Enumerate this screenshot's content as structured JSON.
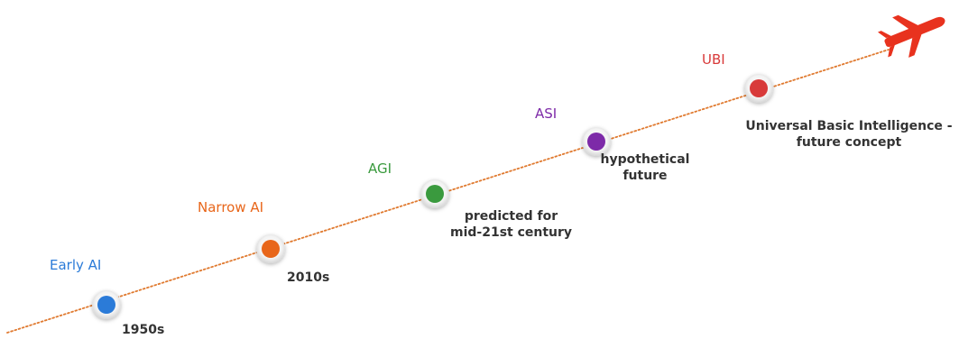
{
  "timeline": {
    "milestones": [
      {
        "label": "Early AI",
        "description": "1950s",
        "color": "#2b7bd8"
      },
      {
        "label": "Narrow AI",
        "description": "2010s",
        "color": "#e8661a"
      },
      {
        "label": "AGI",
        "description": "predicted for\nmid-21st century",
        "color": "#3a9a3e"
      },
      {
        "label": "ASI",
        "description": "hypothetical\nfuture",
        "color": "#7d2aa8"
      },
      {
        "label": "UBI",
        "description": "Universal Basic Intelligence -\nfuture concept",
        "color": "#d83a3a"
      }
    ],
    "line_color": "#e07a30",
    "end_icon": "airplane-icon",
    "end_icon_color": "#e8321e"
  }
}
